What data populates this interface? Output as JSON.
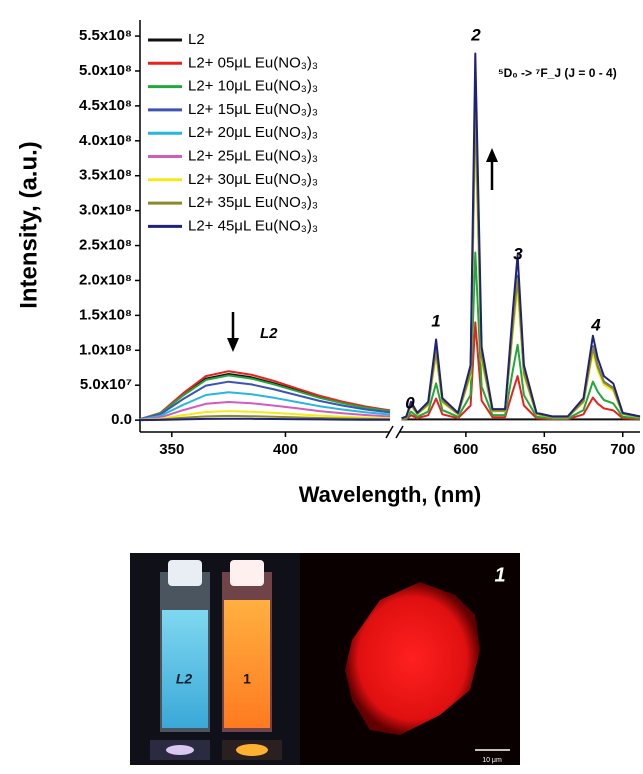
{
  "chart_data": {
    "type": "line",
    "ylabel": "Intensity, (a.u.)",
    "xlabel": "Wavelength, (nm)",
    "x_segments": [
      {
        "xlim": [
          336,
          446
        ],
        "xticks": [
          350,
          400
        ]
      },
      {
        "xlim": [
          558,
          711
        ],
        "xticks": [
          600,
          650,
          700
        ]
      }
    ],
    "ylim": [
      -17000000.0,
      573000000.0
    ],
    "yticks": [
      {
        "value": 0,
        "label": "0.0"
      },
      {
        "value": 50000000.0,
        "label": "5.0x10⁷"
      },
      {
        "value": 100000000.0,
        "label": "1.0x10⁸"
      },
      {
        "value": 150000000.0,
        "label": "1.5x10⁸"
      },
      {
        "value": 200000000.0,
        "label": "2.0x10⁸"
      },
      {
        "value": 250000000.0,
        "label": "2.5x10⁸"
      },
      {
        "value": 300000000.0,
        "label": "3.0x10⁸"
      },
      {
        "value": 350000000.0,
        "label": "3.5x10⁸"
      },
      {
        "value": 400000000.0,
        "label": "4.0x10⁸"
      },
      {
        "value": 450000000.0,
        "label": "4.5x10⁸"
      },
      {
        "value": 500000000.0,
        "label": "5.0x10⁸"
      },
      {
        "value": 550000000.0,
        "label": "5.5x10⁸"
      }
    ],
    "annotations": [
      "0",
      "1",
      "2",
      "3",
      "4",
      "L2",
      "⁵D₀ -> ⁷F_J (J = 0 - 4)"
    ],
    "x": [
      336,
      345,
      355,
      365,
      375,
      385,
      395,
      405,
      415,
      425,
      435,
      446,
      null,
      559,
      562,
      565,
      569,
      576,
      581,
      585,
      595,
      603,
      606,
      610,
      617,
      625,
      630,
      633,
      637,
      645,
      655,
      665,
      675,
      681,
      684,
      688,
      694,
      700,
      711
    ],
    "series": [
      {
        "name": "L2",
        "color": "#111111",
        "values": [
          1300000.0,
          9900000.0,
          36300000.0,
          59400000.0,
          66000000.0,
          61400000.0,
          52800000.0,
          42900000.0,
          33000000.0,
          25100000.0,
          18500000.0,
          13200000.0,
          null,
          1000000.0,
          1000000.0,
          1000000.0,
          1000000.0,
          1000000.0,
          1000000.0,
          1000000.0,
          1000000.0,
          1000000.0,
          1000000.0,
          1000000.0,
          1000000.0,
          1000000.0,
          1000000.0,
          1000000.0,
          1000000.0,
          1000000.0,
          1000000.0,
          1000000.0,
          1000000.0,
          1000000.0,
          1000000.0,
          1000000.0,
          1000000.0,
          1000000.0,
          1000000.0
        ]
      },
      {
        "name": "L2+ 05μL Eu(NO₃)₃",
        "color": "#e8221e",
        "values": [
          1400000.0,
          10500000.0,
          38500000.0,
          63000000.0,
          70000000.0,
          65100000.0,
          56000000.0,
          45500000.0,
          35000000.0,
          26600000.0,
          19600000.0,
          14000000.0,
          null,
          700000.0,
          1400000.0,
          7000000.0,
          2800000.0,
          7000000.0,
          30800000.0,
          8400000.0,
          2800000.0,
          21000000.0,
          140000000.0,
          28000000.0,
          4200000.0,
          4200000.0,
          42000000.0,
          63000000.0,
          21000000.0,
          2800000.0,
          1400000.0,
          1400000.0,
          8400000.0,
          32200000.0,
          23800000.0,
          16800000.0,
          14000000.0,
          2800000.0,
          1400000.0
        ]
      },
      {
        "name": "L2+ 10μL Eu(NO₃)₃",
        "color": "#22a73c",
        "values": [
          1300000.0,
          9600000.0,
          35200000.0,
          57600000.0,
          64000000.0,
          59500000.0,
          51200000.0,
          41600000.0,
          32000000.0,
          24300000.0,
          17900000.0,
          12800000.0,
          null,
          1200000.0,
          2400000.0,
          12000000.0,
          4800000.0,
          12000000.0,
          52800000.0,
          14400000.0,
          4800000.0,
          36000000.0,
          240000000.0,
          48000000.0,
          7200000.0,
          7200000.0,
          72000000.0,
          108000000.0,
          36000000.0,
          4800000.0,
          2400000.0,
          2400000.0,
          14400000.0,
          55200000.0,
          40800000.0,
          28800000.0,
          24000000.0,
          4800000.0,
          2400000.0
        ]
      },
      {
        "name": "L2+ 15μL Eu(NO₃)₃",
        "color": "#3b55b0",
        "values": [
          1100000.0,
          8300000.0,
          30300000.0,
          49500000.0,
          55000000.0,
          51200000.0,
          44000000.0,
          35800000.0,
          27500000.0,
          20900000.0,
          15400000.0,
          11000000.0,
          null,
          2300000.0,
          4600000.0,
          23000000.0,
          9200000.0,
          23000000.0,
          101200000.0,
          27600000.0,
          9200000.0,
          69000000.0,
          460000000.0,
          92000000.0,
          13800000.0,
          13800000.0,
          138000000.0,
          207000000.0,
          69000000.0,
          9200000.0,
          4600000.0,
          4600000.0,
          27600000.0,
          105800000.0,
          78200000.0,
          55200000.0,
          46000000.0,
          9200000.0,
          4600000.0
        ]
      },
      {
        "name": "L2+ 20μL Eu(NO₃)₃",
        "color": "#27b6e0",
        "values": [
          800000.0,
          6000000.0,
          22000000.0,
          36000000.0,
          40000000.0,
          37200000.0,
          32000000.0,
          26000000.0,
          20000000.0,
          15200000.0,
          11200000.0,
          8000000.0,
          null,
          2200000.0,
          4300000.0,
          21500000.0,
          8600000.0,
          21500000.0,
          94600000.0,
          25800000.0,
          8600000.0,
          64500000.0,
          430000000.0,
          86000000.0,
          12900000.0,
          12900000.0,
          129000000.0,
          193500000.0,
          64500000.0,
          8600000.0,
          4300000.0,
          4300000.0,
          25800000.0,
          98900000.0,
          73100000.0,
          51600000.0,
          43000000.0,
          8600000.0,
          4300000.0
        ]
      },
      {
        "name": "L2+ 25μL Eu(NO₃)₃",
        "color": "#d05cc0",
        "values": [
          500000.0,
          3900000.0,
          14300000.0,
          23400000.0,
          26000000.0,
          24200000.0,
          20800000.0,
          16900000.0,
          13000000.0,
          9900000.0,
          7300000.0,
          5200000.0,
          null,
          2200000.0,
          4400000.0,
          22000000.0,
          8800000.0,
          22000000.0,
          96800000.0,
          26400000.0,
          8800000.0,
          66000000.0,
          440000000.0,
          88000000.0,
          13200000.0,
          13200000.0,
          132000000.0,
          198000000.0,
          66000000.0,
          8800000.0,
          4400000.0,
          4400000.0,
          26400000.0,
          101200000.0,
          74800000.0,
          52800000.0,
          44000000.0,
          8800000.0,
          4400000.0
        ]
      },
      {
        "name": "L2+ 30μL Eu(NO₃)₃",
        "color": "#f2ea1b",
        "values": [
          300000.0,
          2000000.0,
          7200000.0,
          11700000.0,
          13000000.0,
          12100000.0,
          10400000.0,
          8500000.0,
          6500000.0,
          4900000.0,
          3600000.0,
          2600000.0,
          null,
          2100000.0,
          4200000.0,
          21000000.0,
          8400000.0,
          21000000.0,
          92400000.0,
          25200000.0,
          8400000.0,
          63000000.0,
          420000000.0,
          84000000.0,
          12600000.0,
          12600000.0,
          126000000.0,
          189000000.0,
          63000000.0,
          8400000.0,
          4200000.0,
          4200000.0,
          25200000.0,
          96600000.0,
          71400000.0,
          50400000.0,
          42000000.0,
          8400000.0,
          4200000.0
        ]
      },
      {
        "name": "L2+ 35μL Eu(NO₃)₃",
        "color": "#8a8a2a",
        "values": [
          100000.0,
          900000.0,
          3300000.0,
          5400000.0,
          6000000.0,
          5600000.0,
          4800000.0,
          3900000.0,
          3000000.0,
          2300000.0,
          1700000.0,
          1200000.0,
          null,
          2300000.0,
          4500000.0,
          22500000.0,
          9000000.0,
          22500000.0,
          99000000.0,
          27000000.0,
          9000000.0,
          67500000.0,
          450000000.0,
          90000000.0,
          13500000.0,
          13500000.0,
          135000000.0,
          202500000.0,
          67500000.0,
          9000000.0,
          4500000.0,
          4500000.0,
          27000000.0,
          103500000.0,
          76500000.0,
          54000000.0,
          45000000.0,
          9000000.0,
          4500000.0
        ]
      },
      {
        "name": "L2+ 45μL Eu(NO₃)₃",
        "color": "#1e2278",
        "values": [
          0,
          300000.0,
          1100000.0,
          1800000.0,
          2000000.0,
          1900000.0,
          1600000.0,
          1300000.0,
          1000000.0,
          800000.0,
          600000.0,
          400000.0,
          null,
          2600000.0,
          5300000.0,
          26300000.0,
          10500000.0,
          26300000.0,
          115500000.0,
          31500000.0,
          10500000.0,
          78800000.0,
          525000000.0,
          105000000.0,
          15800000.0,
          15800000.0,
          157500000.0,
          236300000.0,
          78800000.0,
          10500000.0,
          5300000.0,
          5300000.0,
          31500000.0,
          120800000.0,
          89300000.0,
          63000000.0,
          52500000.0,
          10500000.0,
          5300000.0
        ]
      }
    ]
  },
  "photo": {
    "cuvette_labels": [
      "L2",
      "1"
    ],
    "micrograph_label": "1",
    "scale_bar": "10 μm"
  }
}
